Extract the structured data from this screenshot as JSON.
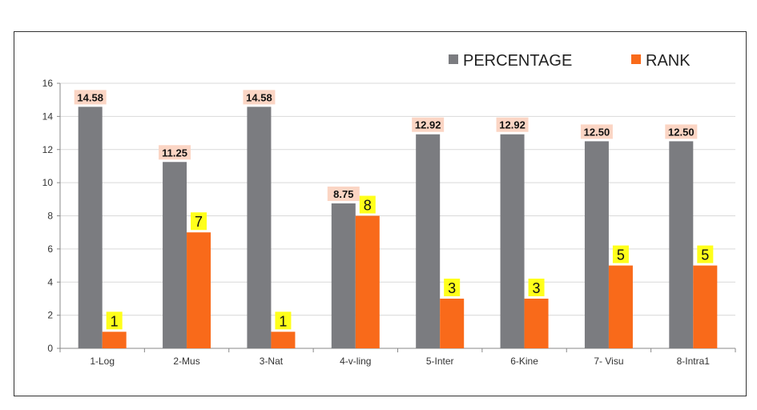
{
  "chart_data": {
    "type": "bar",
    "categories": [
      "1-Log",
      "2-Mus",
      "3-Nat",
      "4-v-ling",
      "5-Inter",
      "6-Kine",
      "7- Visu",
      "8-Intra1"
    ],
    "series": [
      {
        "name": "PERCENTAGE",
        "values": [
          14.58,
          11.25,
          14.58,
          8.75,
          12.92,
          12.92,
          12.5,
          12.5
        ],
        "labels": [
          "14.58",
          "11.25",
          "14.58",
          "8.75",
          "12.92",
          "12.92",
          "12.50",
          "12.50"
        ],
        "color": "#7b7c80",
        "label_bg": "#fbd5c4"
      },
      {
        "name": "RANK",
        "values": [
          1,
          7,
          1,
          8,
          3,
          3,
          5,
          5
        ],
        "labels": [
          "1",
          "7",
          "1",
          "8",
          "3",
          "3",
          "5",
          "5"
        ],
        "color": "#f96a1a",
        "label_bg": "#ffff1a"
      }
    ],
    "ylim": [
      0,
      16
    ],
    "yticks": [
      "0",
      "2",
      "4",
      "6",
      "8",
      "10",
      "12",
      "14",
      "16"
    ],
    "grid": true,
    "legend_position": "top-right",
    "title": "",
    "xlabel": "",
    "ylabel": ""
  }
}
